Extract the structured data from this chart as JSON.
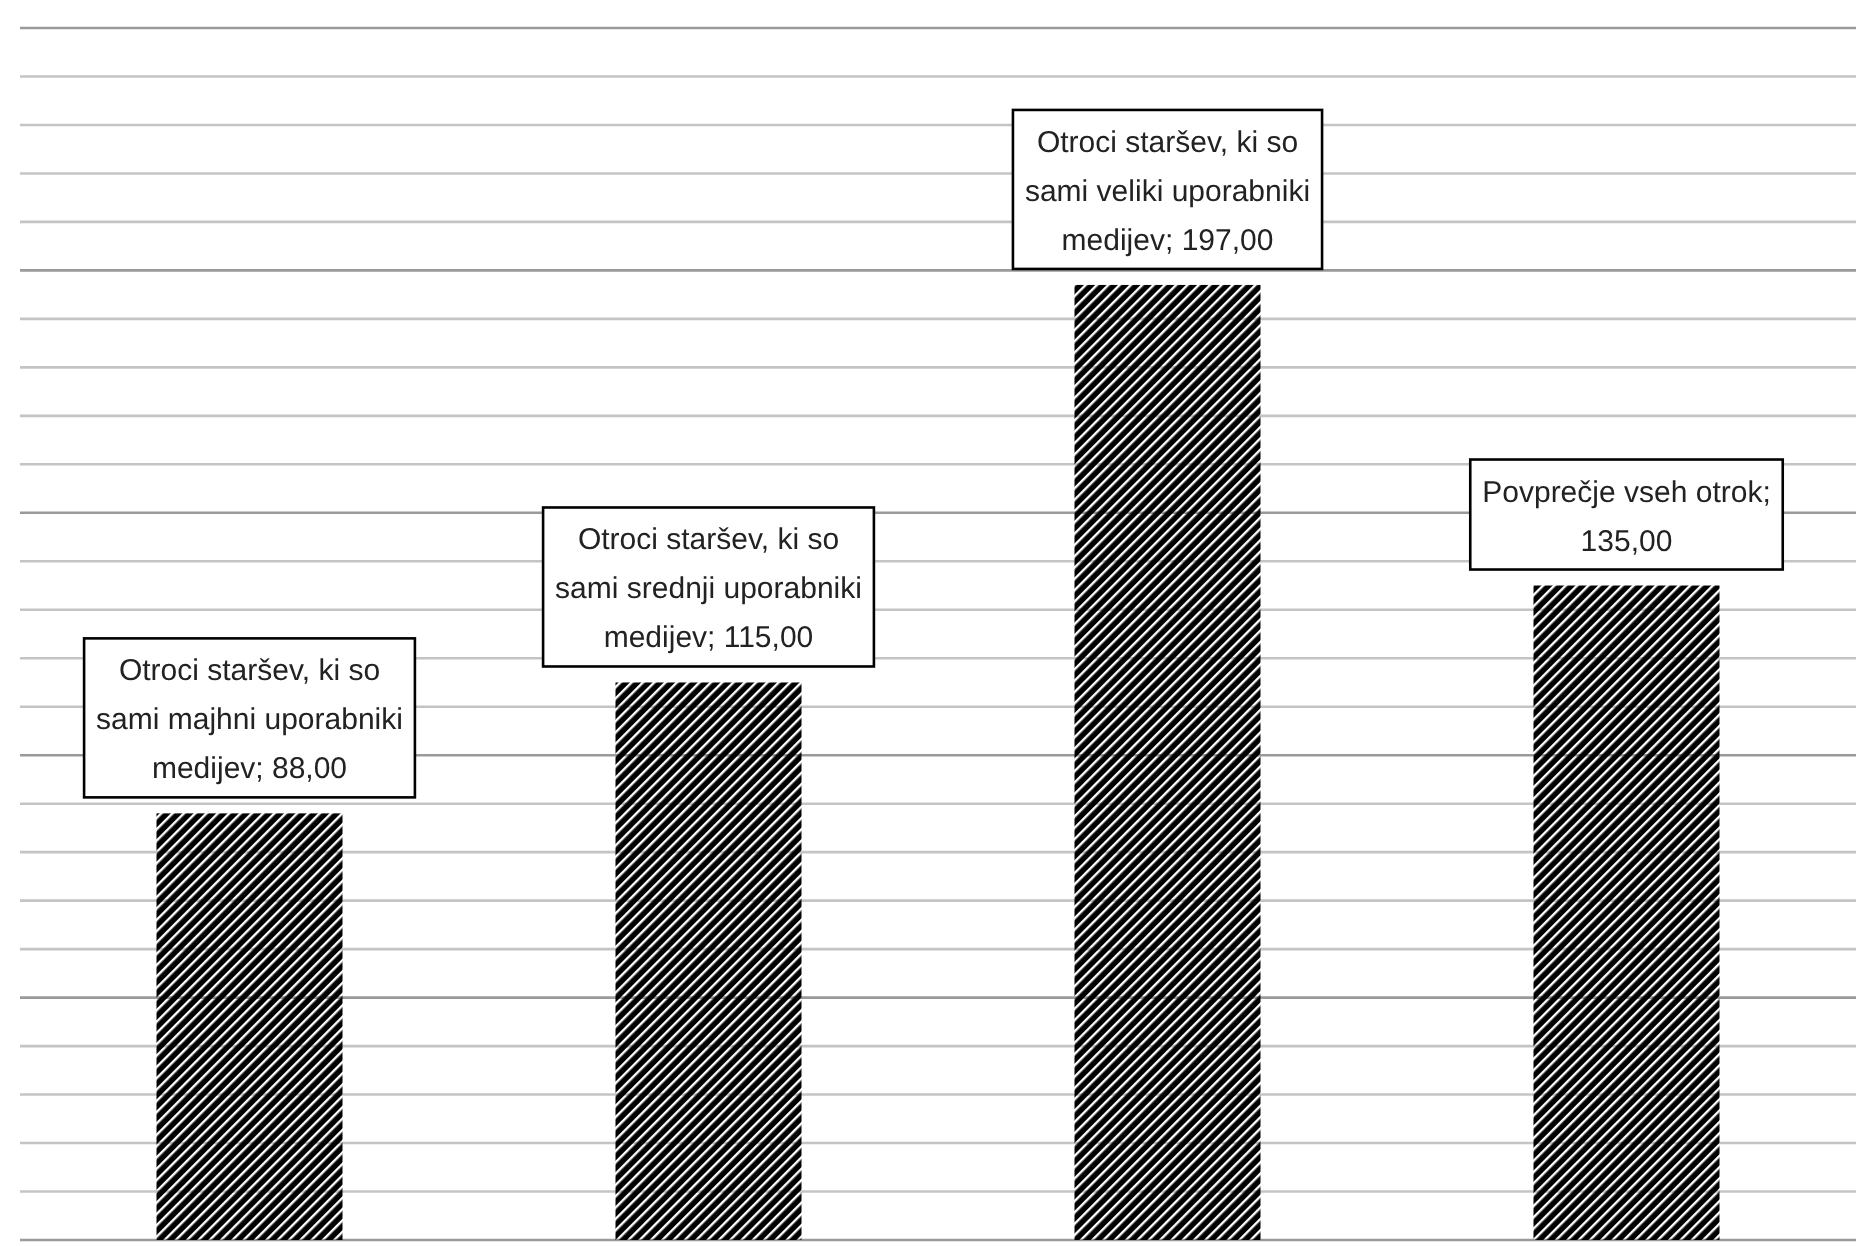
{
  "chart_data": {
    "type": "bar",
    "categories": [
      null,
      null,
      null,
      null
    ],
    "values": [
      88,
      115,
      197,
      135
    ],
    "value_labels": [
      "Otroci staršev, ki so sami majhni uporabniki medijev; 88,00",
      "Otroci staršev, ki so sami srednji uporabniki medijev; 115,00",
      "Otroci staršev, ki so sami veliki uporabniki medijev; 197,00",
      "Povprečje vseh otrok; 135,00"
    ],
    "color": "#000000",
    "ylim": [
      0,
      250
    ],
    "yticks": [
      {
        "value": 0,
        "label": null
      },
      {
        "value": 10,
        "label": null
      },
      {
        "value": 20,
        "label": null
      },
      {
        "value": 30,
        "label": null
      },
      {
        "value": 40,
        "label": null
      },
      {
        "value": 50,
        "label": null
      },
      {
        "value": 60,
        "label": null
      },
      {
        "value": 70,
        "label": null
      },
      {
        "value": 80,
        "label": null
      },
      {
        "value": 90,
        "label": null
      },
      {
        "value": 100,
        "label": null
      },
      {
        "value": 110,
        "label": null
      },
      {
        "value": 120,
        "label": null
      },
      {
        "value": 130,
        "label": null
      },
      {
        "value": 140,
        "label": null
      },
      {
        "value": 150,
        "label": null
      },
      {
        "value": 160,
        "label": null
      },
      {
        "value": 170,
        "label": null
      },
      {
        "value": 180,
        "label": null
      },
      {
        "value": 190,
        "label": null
      },
      {
        "value": 200,
        "label": null
      },
      {
        "value": 210,
        "label": null
      },
      {
        "value": 220,
        "label": null
      },
      {
        "value": 230,
        "label": null
      },
      {
        "value": 240,
        "label": null
      },
      {
        "value": 250,
        "label": null
      }
    ],
    "grid": "y"
  }
}
